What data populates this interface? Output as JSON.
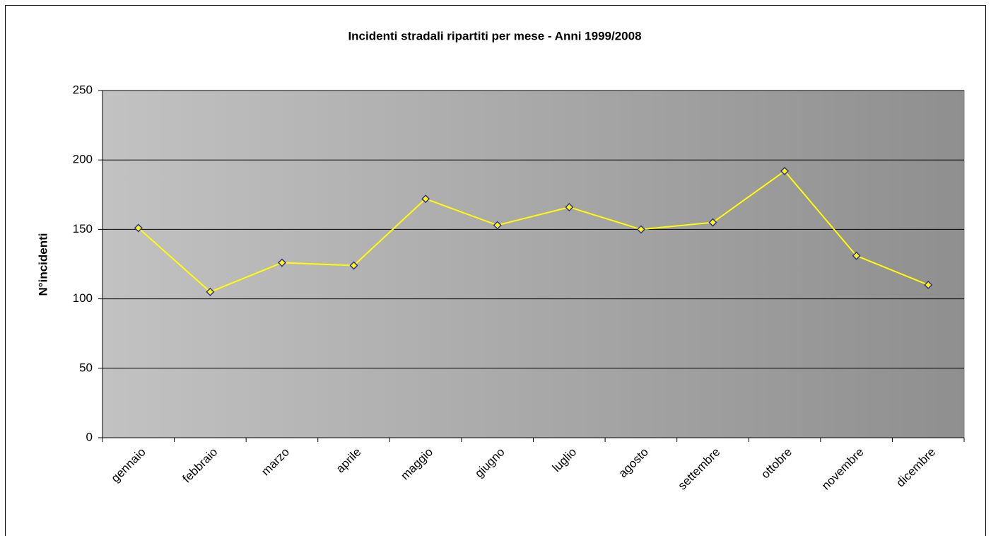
{
  "chart_data": {
    "type": "line",
    "title": "Incidenti stradali ripartiti per mese - Anni 1999/2008",
    "y_label": "N°incidenti",
    "categories": [
      "gennaio",
      "febbraio",
      "marzo",
      "aprile",
      "maggio",
      "giugno",
      "luglio",
      "agosto",
      "settembre",
      "ottobre",
      "novembre",
      "dicembre"
    ],
    "series": [
      {
        "name": "Incidenti",
        "color": "#ffff00",
        "marker_edge": "#333399",
        "values": [
          151,
          105,
          126,
          124,
          172,
          153,
          166,
          150,
          155,
          192,
          131,
          110
        ]
      }
    ],
    "ylim": [
      0,
      250
    ],
    "yticks": [
      0,
      50,
      100,
      150,
      200,
      250
    ],
    "grid": true
  }
}
